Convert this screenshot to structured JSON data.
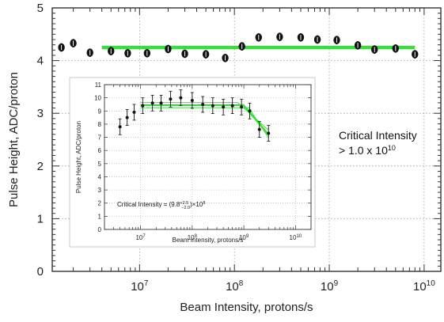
{
  "chart_data": [
    {
      "id": "main",
      "type": "scatter",
      "xlabel": "Beam Intensity, protons/s",
      "ylabel": "Pulse Height, ADC/proton",
      "xscale": "log",
      "xlim": [
        1200000.0,
        15000000000.0
      ],
      "ylim": [
        0,
        5
      ],
      "x_ticks": [
        {
          "value": 10000000.0,
          "base": "10",
          "exp": "7"
        },
        {
          "value": 100000000.0,
          "base": "10",
          "exp": "8"
        },
        {
          "value": 1000000000.0,
          "base": "10",
          "exp": "9"
        },
        {
          "value": 10000000000.0,
          "base": "10",
          "exp": "10"
        }
      ],
      "y_ticks": [
        "0",
        "1",
        "2",
        "3",
        "4",
        "5"
      ],
      "grid": "dotted",
      "points": [
        {
          "x": 1500000.0,
          "y": 4.25,
          "err": 0.08
        },
        {
          "x": 2000000.0,
          "y": 4.33,
          "err": 0.08
        },
        {
          "x": 3000000.0,
          "y": 4.15,
          "err": 0.08
        },
        {
          "x": 5000000.0,
          "y": 4.18,
          "err": 0.08
        },
        {
          "x": 7500000.0,
          "y": 4.14,
          "err": 0.08
        },
        {
          "x": 12000000.0,
          "y": 4.14,
          "err": 0.08
        },
        {
          "x": 20000000.0,
          "y": 4.22,
          "err": 0.08
        },
        {
          "x": 30000000.0,
          "y": 4.13,
          "err": 0.08
        },
        {
          "x": 50000000.0,
          "y": 4.12,
          "err": 0.08
        },
        {
          "x": 80000000.0,
          "y": 4.05,
          "err": 0.08
        },
        {
          "x": 120000000.0,
          "y": 4.27,
          "err": 0.08
        },
        {
          "x": 180000000.0,
          "y": 4.44,
          "err": 0.08
        },
        {
          "x": 300000000.0,
          "y": 4.45,
          "err": 0.08
        },
        {
          "x": 500000000.0,
          "y": 4.44,
          "err": 0.08
        },
        {
          "x": 750000000.0,
          "y": 4.4,
          "err": 0.08
        },
        {
          "x": 1200000000.0,
          "y": 4.39,
          "err": 0.08
        },
        {
          "x": 2000000000.0,
          "y": 4.29,
          "err": 0.08
        },
        {
          "x": 3000000000.0,
          "y": 4.21,
          "err": 0.08
        },
        {
          "x": 5000000000.0,
          "y": 4.23,
          "err": 0.08
        },
        {
          "x": 8000000000.0,
          "y": 4.12,
          "err": 0.08
        }
      ],
      "fit_line": {
        "x": [
          4000000.0,
          8000000000.0
        ],
        "y": [
          4.25,
          4.25
        ],
        "color": "#3ddc3d"
      },
      "annotation": {
        "line1": "Critical Intensity",
        "line2_prefix": "> 1.0 x 10",
        "line2_exp": "10"
      }
    },
    {
      "id": "inset",
      "type": "scatter",
      "xlabel": "Beam Intensity, protons/s",
      "ylabel": "Pulse Height, ADC/proton",
      "xscale": "log",
      "xlim": [
        2000000.0,
        20000000000.0
      ],
      "ylim": [
        0,
        11
      ],
      "x_ticks": [
        {
          "value": 10000000.0,
          "base": "10",
          "exp": "7"
        },
        {
          "value": 100000000.0,
          "base": "10",
          "exp": "8"
        },
        {
          "value": 1000000000.0,
          "base": "10",
          "exp": "9"
        },
        {
          "value": 10000000000.0,
          "base": "10",
          "exp": "10"
        }
      ],
      "y_ticks": [
        "0",
        "1",
        "2",
        "3",
        "4",
        "5",
        "6",
        "7",
        "8",
        "9",
        "10",
        "11"
      ],
      "grid": "dotted",
      "points": [
        {
          "x": 4000000.0,
          "y": 7.8,
          "err": 0.6
        },
        {
          "x": 5500000.0,
          "y": 8.5,
          "err": 0.6
        },
        {
          "x": 7500000.0,
          "y": 8.9,
          "err": 0.6
        },
        {
          "x": 11000000.0,
          "y": 9.4,
          "err": 0.6
        },
        {
          "x": 17000000.0,
          "y": 9.6,
          "err": 0.6
        },
        {
          "x": 25000000.0,
          "y": 9.6,
          "err": 0.6
        },
        {
          "x": 38000000.0,
          "y": 9.9,
          "err": 0.6
        },
        {
          "x": 60000000.0,
          "y": 10.0,
          "err": 0.6
        },
        {
          "x": 100000000.0,
          "y": 9.8,
          "err": 0.6
        },
        {
          "x": 160000000.0,
          "y": 9.5,
          "err": 0.6
        },
        {
          "x": 250000000.0,
          "y": 9.4,
          "err": 0.6
        },
        {
          "x": 400000000.0,
          "y": 9.3,
          "err": 0.6
        },
        {
          "x": 600000000.0,
          "y": 9.4,
          "err": 0.6
        },
        {
          "x": 900000000.0,
          "y": 9.3,
          "err": 0.6
        },
        {
          "x": 1300000000.0,
          "y": 9.0,
          "err": 0.6
        },
        {
          "x": 2000000000.0,
          "y": 7.6,
          "err": 0.6
        },
        {
          "x": 3000000000.0,
          "y": 7.3,
          "err": 0.6
        }
      ],
      "fit_segments": [
        {
          "x": [
            10000000.0,
            980000000.0
          ],
          "y": [
            9.45,
            9.45
          ]
        },
        {
          "x": [
            980000000.0,
            3000000000.0
          ],
          "y": [
            9.45,
            7.2
          ]
        }
      ],
      "fit_band": [
        {
          "x": [
            10000000.0,
            750000000.0
          ],
          "y": [
            9.65,
            9.65
          ]
        },
        {
          "x": [
            10000000.0,
            1250000000.0
          ],
          "y": [
            9.25,
            9.25
          ]
        },
        {
          "x": [
            750000000.0,
            3000000000.0
          ],
          "y": [
            9.65,
            7.55
          ]
        },
        {
          "x": [
            1250000000.0,
            3000000000.0
          ],
          "y": [
            9.25,
            6.95
          ]
        }
      ],
      "fit_color": "#3ddc3d",
      "annotation": {
        "prefix": "Critical Intensity = (9.8",
        "sup": "+2.5",
        "sub": "−2.0",
        "suffix": ")×10",
        "exp": "8"
      }
    }
  ]
}
